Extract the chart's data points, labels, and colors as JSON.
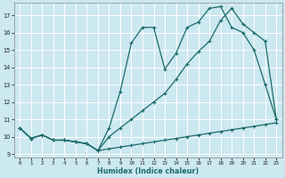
{
  "xlabel": "Humidex (Indice chaleur)",
  "bg_color": "#cce8f0",
  "line_color": "#1a6b6b",
  "grid_color": "#ffffff",
  "ylim": [
    8.8,
    17.7
  ],
  "xlim": [
    -0.5,
    23.5
  ],
  "yticks": [
    9,
    10,
    11,
    12,
    13,
    14,
    15,
    16,
    17
  ],
  "xticks": [
    0,
    1,
    2,
    3,
    4,
    5,
    6,
    7,
    8,
    9,
    10,
    11,
    12,
    13,
    14,
    15,
    16,
    17,
    18,
    19,
    20,
    21,
    22,
    23
  ],
  "line_min_x": [
    0,
    1,
    2,
    3,
    4,
    5,
    6,
    7,
    8,
    9,
    10,
    11,
    12,
    13,
    14,
    15,
    16,
    17,
    18,
    19,
    20,
    21,
    22,
    23
  ],
  "line_min_y": [
    10.5,
    9.9,
    10.1,
    9.8,
    9.8,
    9.7,
    9.6,
    9.2,
    9.3,
    9.4,
    9.5,
    9.6,
    9.7,
    9.8,
    9.9,
    10.0,
    10.1,
    10.2,
    10.3,
    10.4,
    10.5,
    10.6,
    10.7,
    10.8
  ],
  "line_max_x": [
    0,
    1,
    2,
    3,
    4,
    5,
    6,
    7,
    8,
    9,
    10,
    11,
    12,
    13,
    14,
    15,
    16,
    17,
    18,
    19,
    20,
    21,
    22,
    23
  ],
  "line_max_y": [
    10.5,
    9.9,
    10.1,
    9.8,
    9.8,
    9.7,
    9.6,
    9.2,
    10.5,
    12.6,
    15.4,
    16.3,
    16.3,
    13.9,
    14.8,
    16.3,
    16.6,
    17.4,
    17.5,
    16.3,
    16.0,
    15.0,
    13.0,
    11.0
  ],
  "line_mean_x": [
    0,
    1,
    2,
    3,
    4,
    5,
    6,
    7,
    8,
    9,
    10,
    11,
    12,
    13,
    14,
    15,
    16,
    17,
    18,
    19,
    20,
    21,
    22,
    23
  ],
  "line_mean_y": [
    10.5,
    9.9,
    10.1,
    9.8,
    9.8,
    9.7,
    9.6,
    9.2,
    10.0,
    10.5,
    11.0,
    11.5,
    12.0,
    12.5,
    13.3,
    14.2,
    14.9,
    15.5,
    16.7,
    17.4,
    16.5,
    16.0,
    15.5,
    11.0
  ]
}
